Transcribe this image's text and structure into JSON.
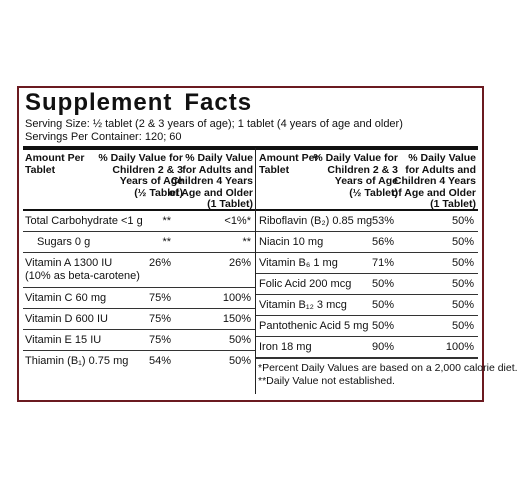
{
  "title_left": "Supplement",
  "title_right": "Facts",
  "serving_size": "Serving Size: ½ tablet (2 & 3 years of age); 1 tablet (4 years of age and older)",
  "servings_per_container": "Servings Per Container: 120; 60",
  "headers": {
    "amount": [
      "Amount Per",
      "Tablet"
    ],
    "dv_children": [
      "% Daily Value for",
      "Children 2 & 3",
      "Years of Age",
      "(½ Tablet)"
    ],
    "dv_adults": [
      "% Daily Value",
      "for Adults and",
      "Children 4 Years",
      "of Age and Older",
      "(1 Tablet)"
    ]
  },
  "left_rows": [
    {
      "nutrient": "Total Carbohydrate <1 g",
      "children": "**",
      "adults": "<1%*"
    },
    {
      "nutrient": "Sugars 0 g",
      "children": "**",
      "adults": "**"
    },
    {
      "nutrient": "Vitamin A 1300 IU",
      "note": "(10% as beta-carotene)",
      "children": "26%",
      "adults": "26%"
    },
    {
      "nutrient": "Vitamin C 60 mg",
      "children": "75%",
      "adults": "100%"
    },
    {
      "nutrient": "Vitamin D 600 IU",
      "children": "75%",
      "adults": "150%"
    },
    {
      "nutrient": "Vitamin E 15 IU",
      "children": "75%",
      "adults": "50%"
    },
    {
      "nutrient": "Thiamin (B₁) 0.75 mg",
      "children": "54%",
      "adults": "50%"
    }
  ],
  "right_rows": [
    {
      "nutrient": "Riboflavin (B₂) 0.85 mg",
      "children": "53%",
      "adults": "50%"
    },
    {
      "nutrient": "Niacin 10 mg",
      "children": "56%",
      "adults": "50%"
    },
    {
      "nutrient": "Vitamin B₆ 1 mg",
      "children": "71%",
      "adults": "50%"
    },
    {
      "nutrient": "Folic Acid 200 mcg",
      "children": "50%",
      "adults": "50%"
    },
    {
      "nutrient": "Vitamin B₁₂ 3 mcg",
      "children": "50%",
      "adults": "50%"
    },
    {
      "nutrient": "Pantothenic Acid 5 mg",
      "children": "50%",
      "adults": "50%"
    },
    {
      "nutrient": "Iron 18 mg",
      "children": "90%",
      "adults": "100%"
    }
  ],
  "footnotes": [
    "*Percent Daily Values are based on a 2,000 calorie diet.",
    "**Daily Value not established."
  ]
}
